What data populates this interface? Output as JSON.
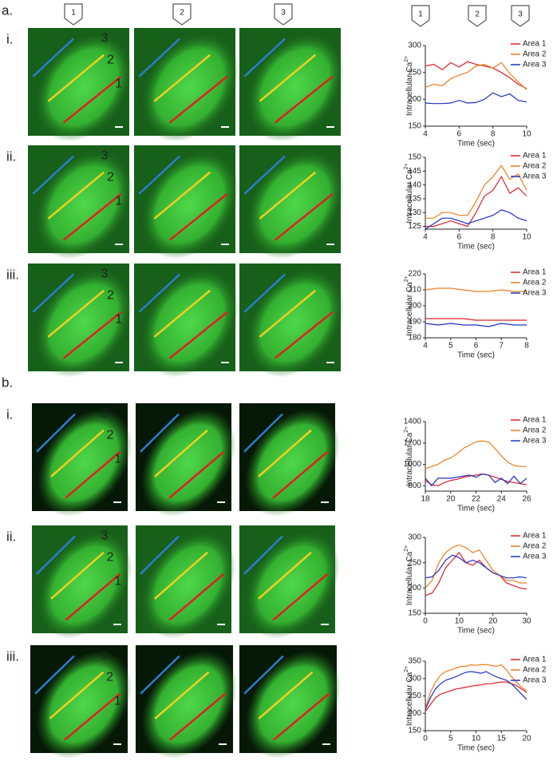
{
  "section_labels": [
    "a.",
    "b."
  ],
  "row_labels": [
    "i.",
    "ii.",
    "iii."
  ],
  "column_markers": [
    "1",
    "2",
    "3"
  ],
  "image_line_labels": [
    "1",
    "2",
    "3"
  ],
  "chart_data": [
    {
      "type": "line",
      "x_label": "Time (sec)",
      "y_label": "Intracellular Ca",
      "y_label_sup": "2+",
      "x": [
        4,
        4.5,
        5,
        5.5,
        6,
        6.5,
        7,
        7.5,
        8,
        8.5,
        9,
        9.5,
        10
      ],
      "series": [
        {
          "name": "Area 1",
          "color": "#e0202a",
          "values": [
            262,
            265,
            255,
            268,
            260,
            270,
            265,
            262,
            258,
            250,
            240,
            228,
            220
          ]
        },
        {
          "name": "Area 2",
          "color": "#f07c1e",
          "values": [
            222,
            228,
            225,
            238,
            245,
            250,
            262,
            265,
            258,
            268,
            248,
            232,
            218
          ]
        },
        {
          "name": "Area 3",
          "color": "#2030c0",
          "values": [
            193,
            192,
            192,
            193,
            198,
            193,
            194,
            200,
            212,
            205,
            210,
            198,
            195
          ]
        }
      ],
      "xlim": [
        4,
        10
      ],
      "xticks": [
        4,
        6,
        8,
        10
      ],
      "ylim": [
        150,
        300
      ],
      "yticks": [
        150,
        200,
        250,
        300
      ],
      "legend": "upper right"
    },
    {
      "type": "line",
      "x_label": "Time (sec)",
      "y_label": "Intracellular Ca",
      "y_label_sup": "2+",
      "x": [
        4,
        4.5,
        5,
        5.5,
        6,
        6.5,
        7,
        7.5,
        8,
        8.5,
        9,
        9.5,
        10
      ],
      "series": [
        {
          "name": "Area 1",
          "color": "#e0202a",
          "values": [
            125,
            125,
            126,
            127,
            126,
            125,
            130,
            136,
            138,
            143,
            137,
            139,
            136
          ]
        },
        {
          "name": "Area 2",
          "color": "#f07c1e",
          "values": [
            128,
            128,
            130,
            130,
            129,
            129,
            134,
            140,
            143,
            147,
            142,
            144,
            138
          ]
        },
        {
          "name": "Area 3",
          "color": "#2030c0",
          "values": [
            124,
            126,
            128,
            128,
            127,
            126,
            127,
            128,
            129,
            131,
            130,
            128,
            127
          ]
        }
      ],
      "xlim": [
        4,
        10
      ],
      "xticks": [
        4,
        6,
        8,
        10
      ],
      "ylim": [
        124,
        150
      ],
      "yticks": [
        125,
        130,
        135,
        140,
        145,
        150
      ],
      "legend": "upper right"
    },
    {
      "type": "line",
      "x_label": "Time (sec)",
      "y_label": "Intracellular Ca",
      "y_label_sup": "2+",
      "x": [
        4,
        4.5,
        5,
        5.5,
        6,
        6.5,
        7,
        7.5,
        8
      ],
      "series": [
        {
          "name": "Area 1",
          "color": "#e0202a",
          "values": [
            192,
            192,
            192,
            192,
            191,
            191,
            191,
            191,
            191
          ]
        },
        {
          "name": "Area 2",
          "color": "#f07c1e",
          "values": [
            210,
            211,
            211,
            210,
            209,
            209,
            210,
            209,
            209
          ]
        },
        {
          "name": "Area 3",
          "color": "#2030c0",
          "values": [
            189,
            188,
            189,
            188,
            188,
            187,
            189,
            188,
            188
          ]
        }
      ],
      "xlim": [
        4,
        8
      ],
      "xticks": [
        4,
        5,
        6,
        7,
        8
      ],
      "ylim": [
        180,
        220
      ],
      "yticks": [
        180,
        190,
        200,
        210,
        220
      ],
      "legend": "upper right"
    },
    {
      "type": "line",
      "x_label": "Time (sec)",
      "y_label": "Intracellular Ca",
      "y_label_sup": "2+",
      "x": [
        18,
        18.5,
        19,
        19.5,
        20,
        20.5,
        21,
        21.5,
        22,
        22.5,
        23,
        23.5,
        24,
        24.5,
        25,
        25.5,
        26
      ],
      "series": [
        {
          "name": "Area 1",
          "color": "#e0202a",
          "values": [
            850,
            810,
            800,
            830,
            850,
            860,
            880,
            890,
            900,
            910,
            900,
            880,
            860,
            840,
            830,
            820,
            810
          ]
        },
        {
          "name": "Area 2",
          "color": "#f07c1e",
          "values": [
            960,
            980,
            1000,
            1040,
            1060,
            1100,
            1150,
            1180,
            1210,
            1220,
            1210,
            1150,
            1080,
            1020,
            990,
            980,
            980
          ]
        },
        {
          "name": "Area 3",
          "color": "#2030c0",
          "values": [
            870,
            800,
            870,
            870,
            870,
            880,
            890,
            900,
            880,
            910,
            900,
            830,
            870,
            820,
            890,
            820,
            870
          ]
        }
      ],
      "xlim": [
        18,
        26
      ],
      "xticks": [
        18,
        20,
        22,
        24,
        26
      ],
      "ylim": [
        750,
        1400
      ],
      "yticks": [
        800,
        1000,
        1200,
        1400
      ],
      "legend": "upper right"
    },
    {
      "type": "line",
      "x_label": "Time (sec)",
      "y_label": "Intracellular Ca",
      "y_label_sup": "2+",
      "x": [
        0,
        2,
        4,
        6,
        8,
        10,
        12,
        14,
        16,
        18,
        20,
        22,
        24,
        26,
        28,
        30
      ],
      "series": [
        {
          "name": "Area 1",
          "color": "#e0202a",
          "values": [
            185,
            190,
            210,
            240,
            255,
            270,
            250,
            245,
            255,
            240,
            230,
            225,
            210,
            205,
            200,
            198
          ]
        },
        {
          "name": "Area 2",
          "color": "#f07c1e",
          "values": [
            200,
            215,
            250,
            270,
            280,
            285,
            280,
            270,
            275,
            255,
            235,
            225,
            215,
            215,
            210,
            210
          ]
        },
        {
          "name": "Area 3",
          "color": "#2030c0",
          "values": [
            220,
            222,
            235,
            255,
            265,
            260,
            250,
            255,
            250,
            240,
            230,
            225,
            220,
            220,
            222,
            220
          ]
        }
      ],
      "xlim": [
        0,
        30
      ],
      "xticks": [
        0,
        10,
        20,
        30
      ],
      "ylim": [
        150,
        300
      ],
      "yticks": [
        150,
        200,
        250,
        300
      ],
      "legend": "upper right"
    },
    {
      "type": "line",
      "x_label": "Time (sec)",
      "y_label": "Intracellular Ca",
      "y_label_sup": "2+",
      "x": [
        0,
        1,
        2,
        3,
        4,
        5,
        6,
        7,
        8,
        9,
        10,
        11,
        12,
        13,
        14,
        15,
        16,
        17,
        18,
        19,
        20
      ],
      "series": [
        {
          "name": "Area 1",
          "color": "#e0202a",
          "values": [
            205,
            225,
            245,
            255,
            260,
            265,
            270,
            272,
            275,
            278,
            280,
            282,
            285,
            285,
            288,
            290,
            290,
            285,
            280,
            270,
            260
          ]
        },
        {
          "name": "Area 2",
          "color": "#f07c1e",
          "values": [
            215,
            260,
            290,
            310,
            320,
            325,
            330,
            335,
            335,
            340,
            338,
            340,
            340,
            338,
            335,
            340,
            325,
            305,
            290,
            275,
            265
          ]
        },
        {
          "name": "Area 3",
          "color": "#2030c0",
          "values": [
            210,
            245,
            270,
            285,
            295,
            300,
            305,
            312,
            318,
            320,
            318,
            315,
            320,
            312,
            305,
            300,
            295,
            285,
            270,
            255,
            240
          ]
        }
      ],
      "xlim": [
        0,
        20
      ],
      "xticks": [
        0,
        5,
        10,
        15,
        20
      ],
      "ylim": [
        150,
        350
      ],
      "yticks": [
        150,
        200,
        250,
        300,
        350
      ],
      "legend": "upper right"
    }
  ]
}
